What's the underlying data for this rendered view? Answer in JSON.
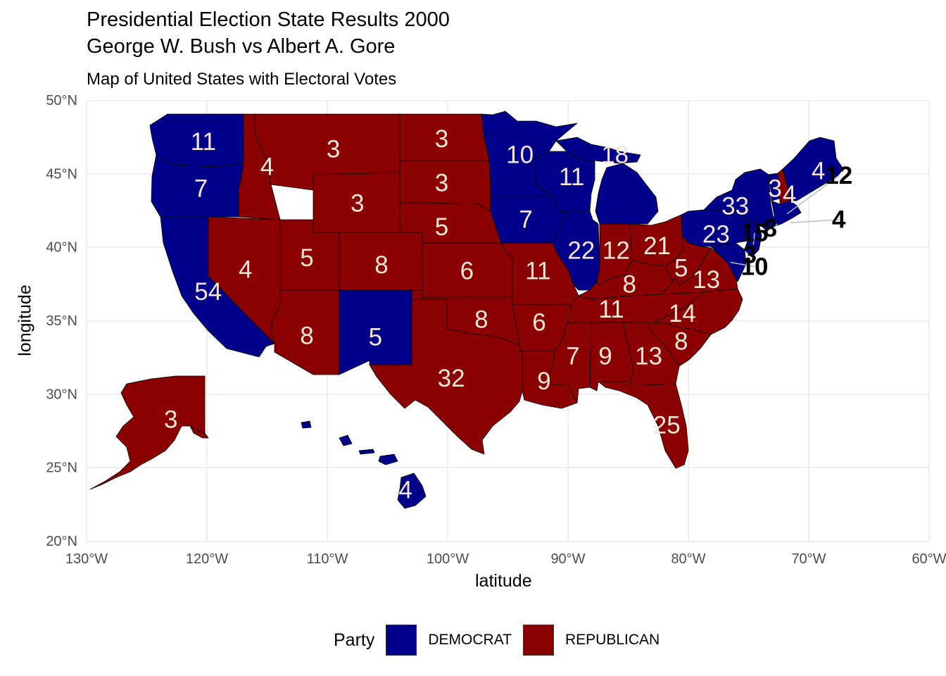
{
  "title_line1": "Presidential Election State Results 2000",
  "title_line2": "George W. Bush vs Albert A. Gore",
  "subtitle": "Map of United States with Electoral Votes",
  "xlabel": "latitude",
  "ylabel": "longitude",
  "x_ticks": [
    "130°W",
    "120°W",
    "110°W",
    "100°W",
    "90°W",
    "80°W",
    "70°W",
    "60°W"
  ],
  "y_ticks": [
    "20°N",
    "25°N",
    "30°N",
    "35°N",
    "40°N",
    "45°N",
    "50°N"
  ],
  "colors": {
    "DEMOCRAT": "#00008B",
    "REPUBLICAN": "#8B0000",
    "label_light": "#F5E6D6",
    "label_dark": "#000000"
  },
  "legend": {
    "title": "Party",
    "items": [
      {
        "label": "DEMOCRAT"
      },
      {
        "label": "REPUBLICAN"
      }
    ]
  },
  "states": [
    {
      "state": "Washington",
      "party": "DEMOCRAT",
      "votes": "11",
      "lon": -120.3,
      "lat": 47.2
    },
    {
      "state": "Oregon",
      "party": "DEMOCRAT",
      "votes": "7",
      "lon": -120.5,
      "lat": 44.0
    },
    {
      "state": "California",
      "party": "DEMOCRAT",
      "votes": "54",
      "lon": -119.9,
      "lat": 37.0
    },
    {
      "state": "Nevada",
      "party": "REPUBLICAN",
      "votes": "4",
      "lon": -116.8,
      "lat": 38.5
    },
    {
      "state": "Idaho",
      "party": "REPUBLICAN",
      "votes": "4",
      "lon": -115.0,
      "lat": 45.5
    },
    {
      "state": "Montana",
      "party": "REPUBLICAN",
      "votes": "3",
      "lon": -109.5,
      "lat": 46.7
    },
    {
      "state": "Wyoming",
      "party": "REPUBLICAN",
      "votes": "3",
      "lon": -107.5,
      "lat": 43.0
    },
    {
      "state": "Utah",
      "party": "REPUBLICAN",
      "votes": "5",
      "lon": -111.7,
      "lat": 39.3
    },
    {
      "state": "Colorado",
      "party": "REPUBLICAN",
      "votes": "8",
      "lon": -105.5,
      "lat": 38.8
    },
    {
      "state": "Arizona",
      "party": "REPUBLICAN",
      "votes": "8",
      "lon": -111.7,
      "lat": 34.0
    },
    {
      "state": "New Mexico",
      "party": "DEMOCRAT",
      "votes": "5",
      "lon": -106.0,
      "lat": 33.9
    },
    {
      "state": "North Dakota",
      "party": "REPUBLICAN",
      "votes": "3",
      "lon": -100.5,
      "lat": 47.4
    },
    {
      "state": "South Dakota",
      "party": "REPUBLICAN",
      "votes": "3",
      "lon": -100.5,
      "lat": 44.4
    },
    {
      "state": "Nebraska",
      "party": "REPUBLICAN",
      "votes": "5",
      "lon": -100.5,
      "lat": 41.4
    },
    {
      "state": "Kansas",
      "party": "REPUBLICAN",
      "votes": "6",
      "lon": -98.4,
      "lat": 38.4
    },
    {
      "state": "Oklahoma",
      "party": "REPUBLICAN",
      "votes": "8",
      "lon": -97.2,
      "lat": 35.1
    },
    {
      "state": "Texas",
      "party": "REPUBLICAN",
      "votes": "32",
      "lon": -99.7,
      "lat": 31.1
    },
    {
      "state": "Minnesota",
      "party": "DEMOCRAT",
      "votes": "10",
      "lon": -94.0,
      "lat": 46.3
    },
    {
      "state": "Iowa",
      "party": "DEMOCRAT",
      "votes": "7",
      "lon": -93.5,
      "lat": 41.9
    },
    {
      "state": "Missouri",
      "party": "REPUBLICAN",
      "votes": "11",
      "lon": -92.5,
      "lat": 38.4
    },
    {
      "state": "Arkansas",
      "party": "REPUBLICAN",
      "votes": "6",
      "lon": -92.4,
      "lat": 34.9
    },
    {
      "state": "Louisiana",
      "party": "REPUBLICAN",
      "votes": "9",
      "lon": -92.0,
      "lat": 30.9
    },
    {
      "state": "Wisconsin",
      "party": "DEMOCRAT",
      "votes": "11",
      "lon": -89.7,
      "lat": 44.8
    },
    {
      "state": "Michigan",
      "party": "DEMOCRAT",
      "votes": "18",
      "lon": -86.1,
      "lat": 46.3
    },
    {
      "state": "Illinois",
      "party": "DEMOCRAT",
      "votes": "22",
      "lon": -88.9,
      "lat": 39.8
    },
    {
      "state": "Indiana",
      "party": "REPUBLICAN",
      "votes": "12",
      "lon": -86.0,
      "lat": 39.8
    },
    {
      "state": "Ohio",
      "party": "REPUBLICAN",
      "votes": "21",
      "lon": -82.6,
      "lat": 40.1
    },
    {
      "state": "Kentucky",
      "party": "REPUBLICAN",
      "votes": "8",
      "lon": -84.9,
      "lat": 37.5
    },
    {
      "state": "Tennessee",
      "party": "REPUBLICAN",
      "votes": "11",
      "lon": -86.4,
      "lat": 35.8
    },
    {
      "state": "Mississippi",
      "party": "REPUBLICAN",
      "votes": "7",
      "lon": -89.6,
      "lat": 32.6
    },
    {
      "state": "Alabama",
      "party": "REPUBLICAN",
      "votes": "9",
      "lon": -86.9,
      "lat": 32.6
    },
    {
      "state": "Georgia",
      "party": "REPUBLICAN",
      "votes": "13",
      "lon": -83.3,
      "lat": 32.6
    },
    {
      "state": "Florida",
      "party": "REPUBLICAN",
      "votes": "25",
      "lon": -81.8,
      "lat": 27.9
    },
    {
      "state": "South Carolina",
      "party": "REPUBLICAN",
      "votes": "8",
      "lon": -80.6,
      "lat": 33.6
    },
    {
      "state": "North Carolina",
      "party": "REPUBLICAN",
      "votes": "14",
      "lon": -80.5,
      "lat": 35.5
    },
    {
      "state": "Virginia",
      "party": "REPUBLICAN",
      "votes": "13",
      "lon": -78.5,
      "lat": 37.8
    },
    {
      "state": "West Virginia",
      "party": "REPUBLICAN",
      "votes": "5",
      "lon": -80.6,
      "lat": 38.6
    },
    {
      "state": "Pennsylvania",
      "party": "DEMOCRAT",
      "votes": "23",
      "lon": -77.7,
      "lat": 40.9
    },
    {
      "state": "New York",
      "party": "DEMOCRAT",
      "votes": "33",
      "lon": -76.1,
      "lat": 42.8
    },
    {
      "state": "Vermont",
      "party": "DEMOCRAT",
      "votes": "3",
      "lon": -72.8,
      "lat": 44.0
    },
    {
      "state": "New Hampshire",
      "party": "REPUBLICAN",
      "votes": "4",
      "lon": -71.6,
      "lat": 43.6
    },
    {
      "state": "Maine",
      "party": "DEMOCRAT",
      "votes": "4",
      "lon": -69.2,
      "lat": 45.2
    },
    {
      "state": "Alaska",
      "party": "REPUBLICAN",
      "votes": "3",
      "lon": -123.0,
      "lat": 28.3
    },
    {
      "state": "Hawaii",
      "party": "DEMOCRAT",
      "votes": "4",
      "lon": -103.5,
      "lat": 23.5
    }
  ],
  "callouts": [
    {
      "state": "Massachusetts",
      "votes": "12",
      "lon": -67.5,
      "lat": 44.9
    },
    {
      "state": "Rhode Island",
      "votes": "4",
      "lon": -67.5,
      "lat": 41.9
    },
    {
      "state": "Connecticut",
      "votes": "8",
      "lon": -73.2,
      "lat": 41.3
    },
    {
      "state": "New Jersey",
      "votes": "15",
      "lon": -74.5,
      "lat": 41.0
    },
    {
      "state": "Delaware",
      "votes": "3",
      "lon": -74.9,
      "lat": 39.5
    },
    {
      "state": "Maryland",
      "votes": "10",
      "lon": -74.5,
      "lat": 38.7
    }
  ]
}
